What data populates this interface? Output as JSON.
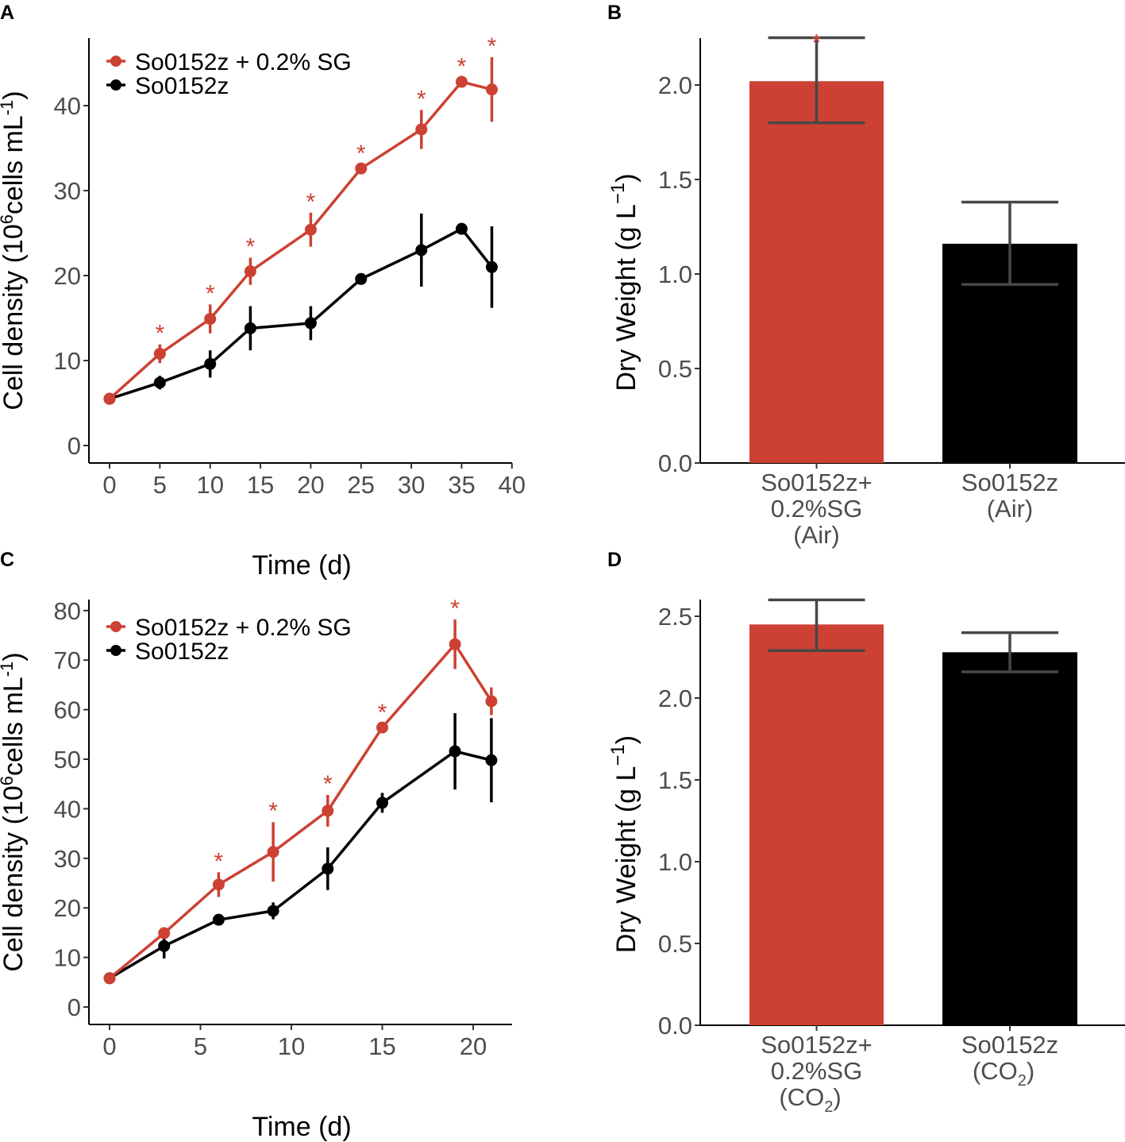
{
  "colors": {
    "treated": "#cc4133",
    "control": "#000000",
    "errorbar_bar": "#474747",
    "axis": "#000000"
  },
  "chart_data": [
    {
      "panel": "A",
      "type": "line",
      "xlabel": "Time (d)",
      "ylabel": {
        "main": "Cell density (10",
        "sup1": "6",
        "mid": "cells mL",
        "sup2": "-1",
        "end": ")"
      },
      "xticks": [
        0,
        5,
        10,
        15,
        20,
        25,
        30,
        35,
        40
      ],
      "yticks": [
        0,
        10,
        20,
        30,
        40
      ],
      "xlim": [
        0,
        40
      ],
      "ylim": [
        0,
        45
      ],
      "grid": false,
      "legend_position": "top-left",
      "series": [
        {
          "name": "So0152z + 0.2% SG",
          "color": "#cc4133",
          "x": [
            0,
            5,
            10,
            14,
            20,
            25,
            31,
            35,
            38
          ],
          "y": [
            5.5,
            10.8,
            14.9,
            20.5,
            25.4,
            32.6,
            37.2,
            42.8,
            41.9
          ],
          "err": [
            0.3,
            1.1,
            1.7,
            1.6,
            2.0,
            0.5,
            2.3,
            0.5,
            3.8
          ],
          "significant": [
            false,
            true,
            true,
            true,
            true,
            true,
            true,
            true,
            true
          ]
        },
        {
          "name": "So0152z",
          "color": "#000000",
          "x": [
            0,
            5,
            10,
            14,
            20,
            25,
            31,
            35,
            38
          ],
          "y": [
            5.5,
            7.4,
            9.6,
            13.8,
            14.4,
            19.6,
            23.0,
            25.5,
            21.0
          ],
          "err": [
            0.3,
            0.8,
            1.6,
            2.6,
            2.0,
            0.4,
            4.3,
            0.4,
            4.8
          ]
        }
      ],
      "annotation": "*"
    },
    {
      "panel": "B",
      "type": "bar",
      "ylabel": {
        "main": "Dry Weight (g L",
        "sup": "−1",
        "end": ")"
      },
      "yticks": [
        "0.0",
        "0.5",
        "1.0",
        "1.5",
        "2.0"
      ],
      "ylim": [
        0,
        2.25
      ],
      "categories": [
        [
          "So0152z+",
          "0.2%SG",
          "(Air)"
        ],
        [
          "So0152z",
          "(Air)"
        ]
      ],
      "values": [
        2.02,
        1.16
      ],
      "err_low": [
        1.8,
        0.945
      ],
      "err_high": [
        2.25,
        1.38
      ],
      "bar_colors": [
        "#cc4133",
        "#000000"
      ],
      "significant": [
        true,
        false
      ],
      "annotation": "*"
    },
    {
      "panel": "C",
      "type": "line",
      "xlabel": "Time (d)",
      "ylabel": {
        "main": "Cell density (10",
        "sup1": "6",
        "mid": "cells mL",
        "sup2": "-1",
        "end": ")"
      },
      "xticks": [
        0,
        5,
        10,
        15,
        20
      ],
      "yticks": [
        0,
        10,
        20,
        30,
        40,
        50,
        60,
        70,
        80
      ],
      "xlim": [
        0,
        21
      ],
      "ylim": [
        0,
        80
      ],
      "grid": false,
      "legend_position": "top-left",
      "series": [
        {
          "name": "So0152z + 0.2% SG",
          "color": "#cc4133",
          "x": [
            0,
            3,
            6,
            9,
            12,
            15,
            19,
            21
          ],
          "y": [
            5.8,
            14.9,
            24.7,
            31.3,
            39.6,
            56.4,
            73.2,
            61.7
          ],
          "err": [
            0.5,
            1.0,
            2.5,
            6.0,
            3.2,
            0.8,
            5.0,
            2.8
          ],
          "significant": [
            false,
            false,
            true,
            true,
            true,
            true,
            true,
            false
          ]
        },
        {
          "name": "So0152z",
          "color": "#000000",
          "x": [
            0,
            3,
            6,
            9,
            12,
            15,
            19,
            21
          ],
          "y": [
            5.8,
            12.3,
            17.6,
            19.4,
            27.9,
            41.2,
            51.6,
            49.8
          ],
          "err": [
            0.5,
            2.5,
            0.6,
            1.7,
            4.3,
            2.0,
            7.7,
            8.5
          ]
        }
      ],
      "annotation": "*"
    },
    {
      "panel": "D",
      "type": "bar",
      "ylabel": {
        "main": "Dry Weight (g L",
        "sup": "−1",
        "end": ")"
      },
      "yticks": [
        "0.0",
        "0.5",
        "1.0",
        "1.5",
        "2.0",
        "2.5"
      ],
      "ylim": [
        0,
        2.6
      ],
      "categories": [
        [
          "So0152z+",
          "0.2%SG",
          "(CO",
          "2",
          ")"
        ],
        [
          "So0152z",
          "(CO",
          "2",
          ")"
        ]
      ],
      "values": [
        2.45,
        2.28
      ],
      "err_low": [
        2.29,
        2.16
      ],
      "err_high": [
        2.6,
        2.4
      ],
      "bar_colors": [
        "#cc4133",
        "#000000"
      ],
      "significant": [
        false,
        false
      ]
    }
  ]
}
